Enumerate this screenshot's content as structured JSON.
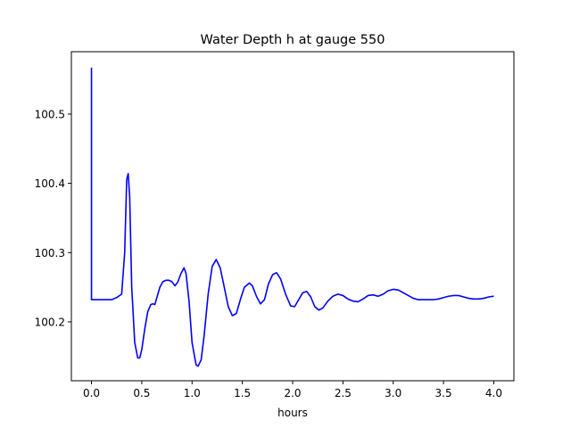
{
  "chart_data": {
    "type": "line",
    "title": "Water Depth h at gauge 550",
    "xlabel": "hours",
    "ylabel": "",
    "xlim": [
      -0.2,
      4.2
    ],
    "ylim": [
      100.115,
      100.59
    ],
    "xticks": [
      0.0,
      0.5,
      1.0,
      1.5,
      2.0,
      2.5,
      3.0,
      3.5,
      4.0
    ],
    "xtick_labels": [
      "0.0",
      "0.5",
      "1.0",
      "1.5",
      "2.0",
      "2.5",
      "3.0",
      "3.5",
      "4.0"
    ],
    "yticks": [
      100.2,
      100.3,
      100.4,
      100.5
    ],
    "ytick_labels": [
      "100.2",
      "100.3",
      "100.4",
      "100.5"
    ],
    "grid": false,
    "series": [
      {
        "color": "#0000ff",
        "points": [
          [
            0.0,
            100.567
          ],
          [
            0.0,
            100.232
          ],
          [
            0.05,
            100.232
          ],
          [
            0.1,
            100.232
          ],
          [
            0.15,
            100.232
          ],
          [
            0.2,
            100.232
          ],
          [
            0.25,
            100.235
          ],
          [
            0.3,
            100.24
          ],
          [
            0.33,
            100.3
          ],
          [
            0.35,
            100.405
          ],
          [
            0.365,
            100.414
          ],
          [
            0.38,
            100.38
          ],
          [
            0.4,
            100.25
          ],
          [
            0.43,
            100.17
          ],
          [
            0.46,
            100.148
          ],
          [
            0.48,
            100.148
          ],
          [
            0.5,
            100.16
          ],
          [
            0.53,
            100.19
          ],
          [
            0.56,
            100.215
          ],
          [
            0.59,
            100.225
          ],
          [
            0.61,
            100.226
          ],
          [
            0.63,
            100.225
          ],
          [
            0.65,
            100.235
          ],
          [
            0.68,
            100.25
          ],
          [
            0.71,
            100.258
          ],
          [
            0.74,
            100.26
          ],
          [
            0.77,
            100.26
          ],
          [
            0.8,
            100.258
          ],
          [
            0.83,
            100.252
          ],
          [
            0.86,
            100.258
          ],
          [
            0.89,
            100.27
          ],
          [
            0.92,
            100.278
          ],
          [
            0.94,
            100.27
          ],
          [
            0.97,
            100.23
          ],
          [
            1.0,
            100.17
          ],
          [
            1.04,
            100.138
          ],
          [
            1.06,
            100.136
          ],
          [
            1.09,
            100.145
          ],
          [
            1.12,
            100.18
          ],
          [
            1.16,
            100.24
          ],
          [
            1.2,
            100.28
          ],
          [
            1.24,
            100.29
          ],
          [
            1.28,
            100.278
          ],
          [
            1.32,
            100.25
          ],
          [
            1.36,
            100.222
          ],
          [
            1.4,
            100.209
          ],
          [
            1.44,
            100.212
          ],
          [
            1.48,
            100.232
          ],
          [
            1.52,
            100.25
          ],
          [
            1.57,
            100.256
          ],
          [
            1.6,
            100.252
          ],
          [
            1.64,
            100.237
          ],
          [
            1.68,
            100.226
          ],
          [
            1.72,
            100.232
          ],
          [
            1.76,
            100.255
          ],
          [
            1.8,
            100.268
          ],
          [
            1.84,
            100.271
          ],
          [
            1.88,
            100.262
          ],
          [
            1.93,
            100.24
          ],
          [
            1.98,
            100.223
          ],
          [
            2.02,
            100.222
          ],
          [
            2.06,
            100.232
          ],
          [
            2.1,
            100.242
          ],
          [
            2.14,
            100.244
          ],
          [
            2.18,
            100.236
          ],
          [
            2.22,
            100.222
          ],
          [
            2.26,
            100.217
          ],
          [
            2.3,
            100.22
          ],
          [
            2.35,
            100.23
          ],
          [
            2.4,
            100.237
          ],
          [
            2.45,
            100.24
          ],
          [
            2.5,
            100.238
          ],
          [
            2.55,
            100.233
          ],
          [
            2.6,
            100.23
          ],
          [
            2.65,
            100.229
          ],
          [
            2.7,
            100.233
          ],
          [
            2.75,
            100.238
          ],
          [
            2.8,
            100.239
          ],
          [
            2.85,
            100.237
          ],
          [
            2.9,
            100.24
          ],
          [
            2.95,
            100.245
          ],
          [
            3.0,
            100.247
          ],
          [
            3.05,
            100.246
          ],
          [
            3.1,
            100.242
          ],
          [
            3.15,
            100.238
          ],
          [
            3.2,
            100.234
          ],
          [
            3.25,
            100.232
          ],
          [
            3.3,
            100.232
          ],
          [
            3.4,
            100.232
          ],
          [
            3.45,
            100.233
          ],
          [
            3.5,
            100.235
          ],
          [
            3.55,
            100.237
          ],
          [
            3.6,
            100.238
          ],
          [
            3.65,
            100.238
          ],
          [
            3.7,
            100.236
          ],
          [
            3.75,
            100.234
          ],
          [
            3.8,
            100.233
          ],
          [
            3.85,
            100.233
          ],
          [
            3.9,
            100.234
          ],
          [
            3.95,
            100.236
          ],
          [
            4.0,
            100.237
          ]
        ]
      }
    ]
  }
}
